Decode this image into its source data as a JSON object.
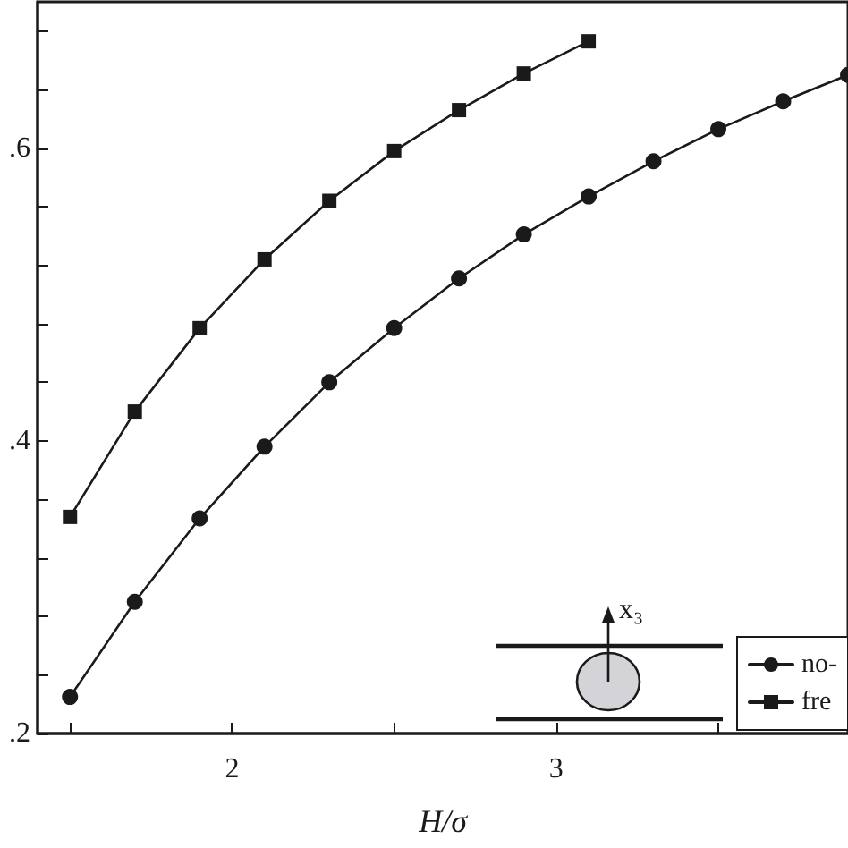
{
  "chart_data": {
    "type": "line",
    "xlabel": "H/σ",
    "annotations": [
      "x₃"
    ],
    "xlim": [
      1.4,
      3.9
    ],
    "ylim": [
      0.2,
      0.7
    ],
    "xticks": [
      {
        "value": 1.5,
        "label": null
      },
      2,
      {
        "value": 2.5,
        "label": null
      },
      3,
      {
        "value": 3.5,
        "label": null
      }
    ],
    "yticks": [
      {
        "value": 0.2,
        "label": ".2"
      },
      {
        "value": 0.24,
        "label": null
      },
      {
        "value": 0.28,
        "label": null
      },
      {
        "value": 0.32,
        "label": null
      },
      {
        "value": 0.36,
        "label": null
      },
      {
        "value": 0.4,
        "label": ".4"
      },
      {
        "value": 0.44,
        "label": null
      },
      {
        "value": 0.48,
        "label": null
      },
      {
        "value": 0.52,
        "label": null
      },
      {
        "value": 0.56,
        "label": null
      },
      {
        "value": 0.6,
        "label": ".6"
      },
      {
        "value": 0.64,
        "label": null
      },
      {
        "value": 0.68,
        "label": null
      }
    ],
    "grid": false,
    "legend": "bottom right",
    "line_style": "solid",
    "series": [
      {
        "name": "no-",
        "color": "#1a1a1a",
        "marker": "circle",
        "x": [
          1.5,
          1.7,
          1.9,
          2.1,
          2.3,
          2.5,
          2.7,
          2.9,
          3.1,
          3.3,
          3.5,
          3.7,
          3.9
        ],
        "values": [
          0.225,
          0.29,
          0.347,
          0.396,
          0.44,
          0.477,
          0.511,
          0.541,
          0.567,
          0.591,
          0.613,
          0.632,
          0.65
        ]
      },
      {
        "name": "fre",
        "color": "#1a1a1a",
        "marker": "square",
        "x": [
          1.5,
          1.7,
          1.9,
          2.1,
          2.3,
          2.5,
          2.7,
          2.9,
          3.1
        ],
        "values": [
          0.348,
          0.42,
          0.477,
          0.524,
          0.564,
          0.598,
          0.626,
          0.651,
          0.673
        ]
      }
    ]
  }
}
